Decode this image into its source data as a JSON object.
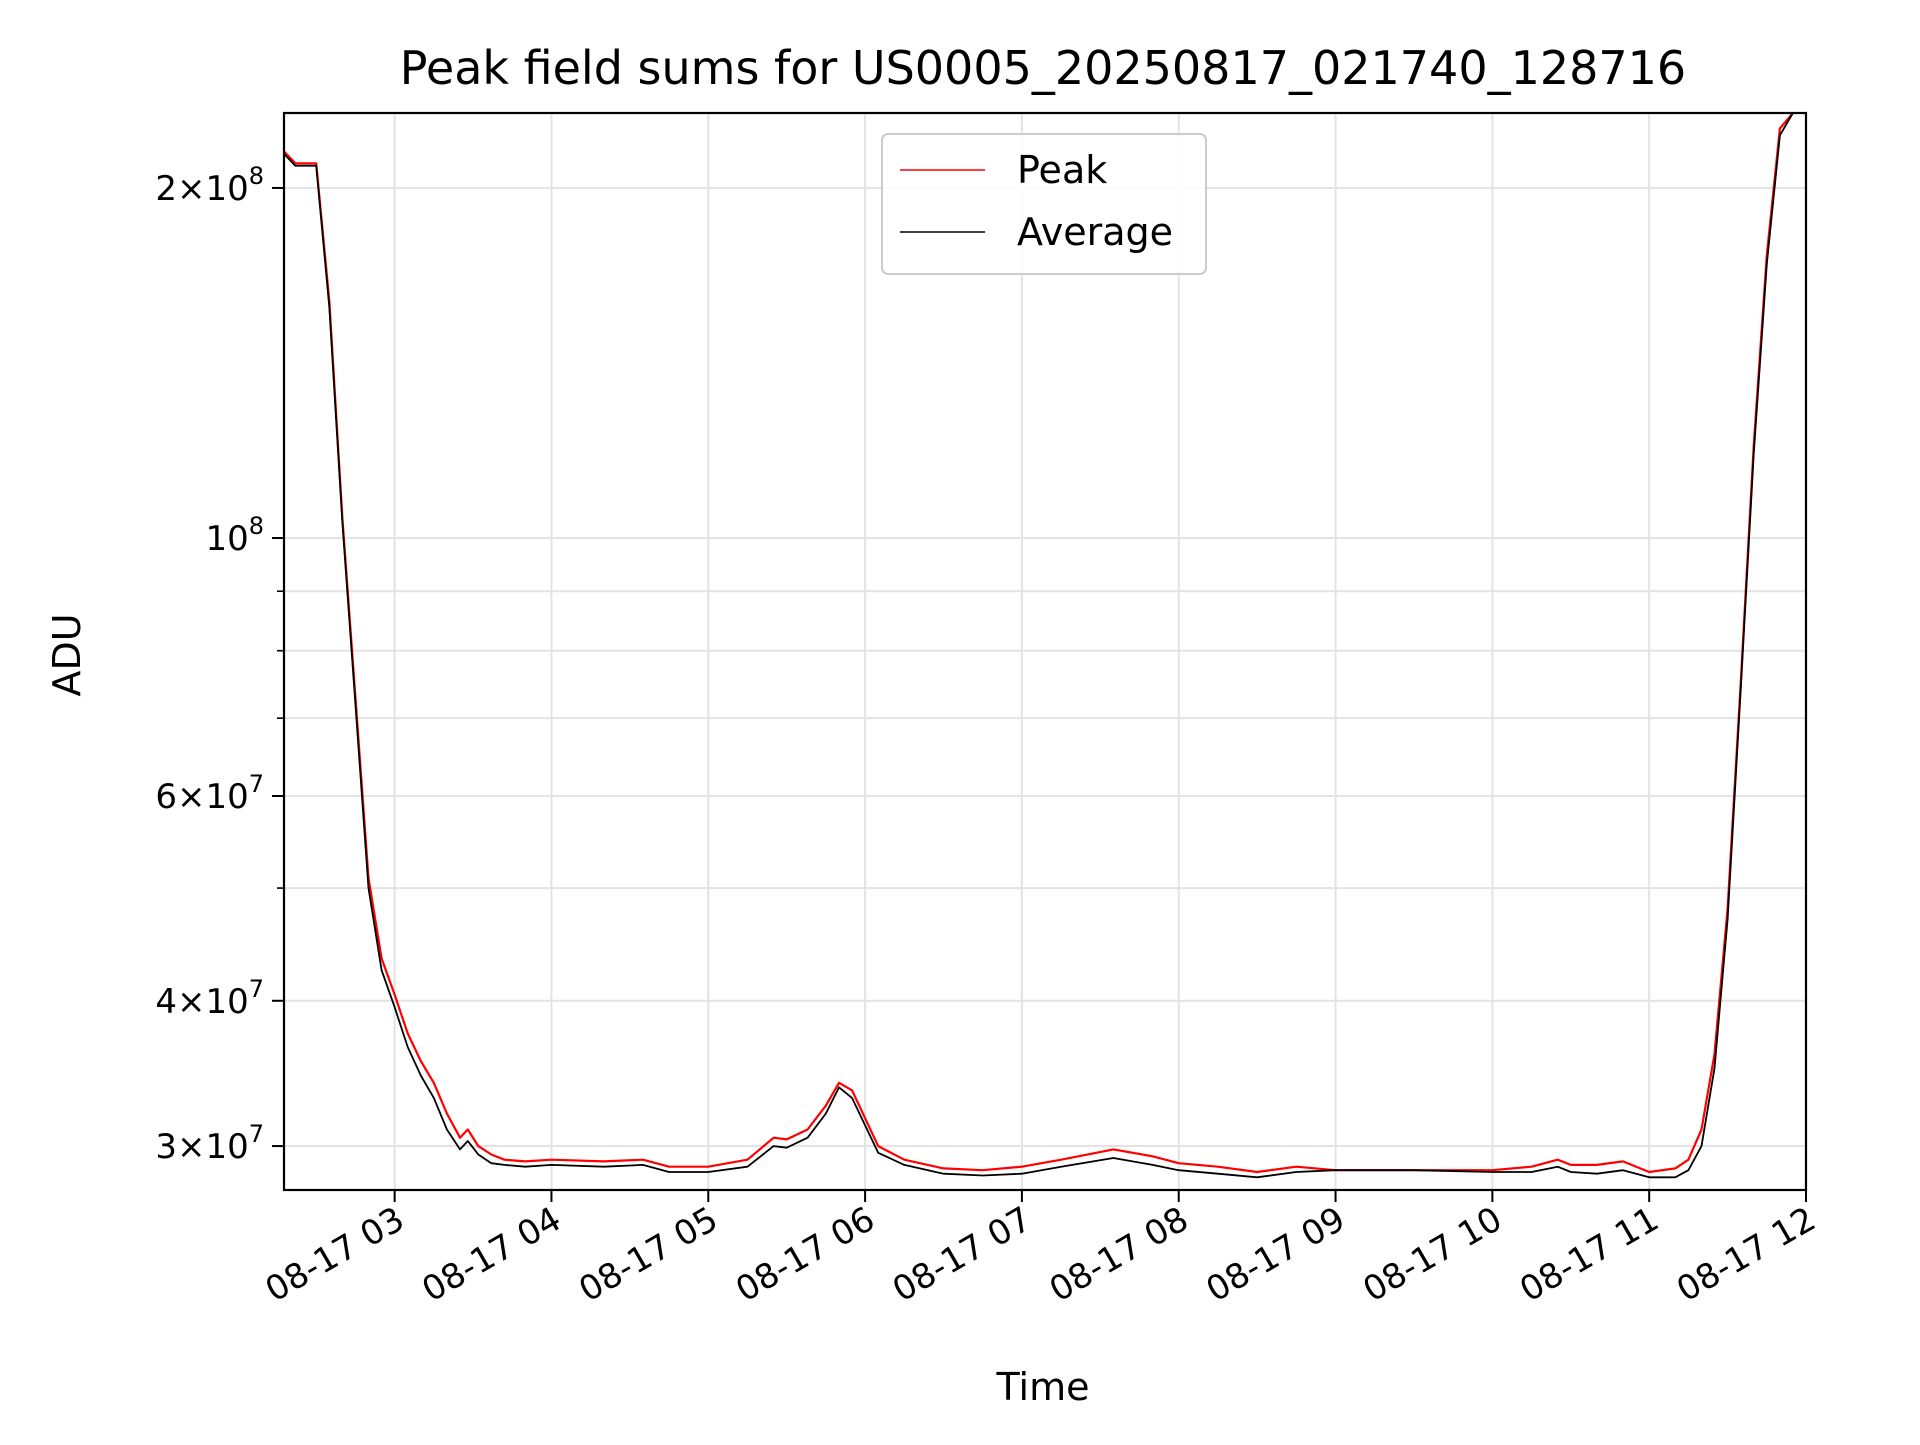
{
  "chart_data": {
    "type": "line",
    "title": "Peak field sums for US0005_20250817_021740_128716",
    "xlabel": "Time",
    "ylabel": "ADU",
    "y_scale": "log",
    "xlim": [
      "2025-08-17T02:17:40",
      "2025-08-17T12:00:00"
    ],
    "ylim": [
      27500000,
      232000000
    ],
    "grid": true,
    "legend_position": "top-center",
    "x_ticks": [
      "08-17 03",
      "08-17 04",
      "08-17 05",
      "08-17 06",
      "08-17 07",
      "08-17 08",
      "08-17 09",
      "08-17 10",
      "08-17 11",
      "08-17 12"
    ],
    "x_tick_times": [
      "2025-08-17T03:00",
      "2025-08-17T04:00",
      "2025-08-17T05:00",
      "2025-08-17T06:00",
      "2025-08-17T07:00",
      "2025-08-17T08:00",
      "2025-08-17T09:00",
      "2025-08-17T10:00",
      "2025-08-17T11:00",
      "2025-08-17T12:00"
    ],
    "y_ticks": [
      {
        "value": 200000000,
        "mantissa": "2",
        "exponent": "8"
      },
      {
        "value": 100000000,
        "mantissa": "",
        "exponent": "8"
      },
      {
        "value": 60000000,
        "mantissa": "6",
        "exponent": "7"
      },
      {
        "value": 40000000,
        "mantissa": "4",
        "exponent": "7"
      },
      {
        "value": 30000000,
        "mantissa": "3",
        "exponent": "7"
      }
    ],
    "y_minor_ticks": [
      50000000,
      70000000,
      80000000,
      90000000
    ],
    "series": [
      {
        "name": "Peak",
        "color": "#ff0000",
        "x": [
          "2025-08-17T02:17:40",
          "2025-08-17T02:22",
          "2025-08-17T02:30",
          "2025-08-17T02:35",
          "2025-08-17T02:40",
          "2025-08-17T02:45",
          "2025-08-17T02:50",
          "2025-08-17T02:55",
          "2025-08-17T03:00",
          "2025-08-17T03:05",
          "2025-08-17T03:10",
          "2025-08-17T03:15",
          "2025-08-17T03:20",
          "2025-08-17T03:25",
          "2025-08-17T03:28",
          "2025-08-17T03:32",
          "2025-08-17T03:37",
          "2025-08-17T03:42",
          "2025-08-17T03:50",
          "2025-08-17T04:00",
          "2025-08-17T04:20",
          "2025-08-17T04:35",
          "2025-08-17T04:45",
          "2025-08-17T05:00",
          "2025-08-17T05:15",
          "2025-08-17T05:25",
          "2025-08-17T05:30",
          "2025-08-17T05:38",
          "2025-08-17T05:45",
          "2025-08-17T05:50",
          "2025-08-17T05:55",
          "2025-08-17T06:05",
          "2025-08-17T06:15",
          "2025-08-17T06:30",
          "2025-08-17T06:45",
          "2025-08-17T07:00",
          "2025-08-17T07:15",
          "2025-08-17T07:35",
          "2025-08-17T07:50",
          "2025-08-17T08:00",
          "2025-08-17T08:15",
          "2025-08-17T08:30",
          "2025-08-17T08:45",
          "2025-08-17T09:00",
          "2025-08-17T09:30",
          "2025-08-17T10:00",
          "2025-08-17T10:15",
          "2025-08-17T10:25",
          "2025-08-17T10:30",
          "2025-08-17T10:40",
          "2025-08-17T10:50",
          "2025-08-17T11:00",
          "2025-08-17T11:10",
          "2025-08-17T11:15",
          "2025-08-17T11:20",
          "2025-08-17T11:25",
          "2025-08-17T11:30",
          "2025-08-17T11:35",
          "2025-08-17T11:40",
          "2025-08-17T11:45",
          "2025-08-17T11:50",
          "2025-08-17T11:55"
        ],
        "y": [
          215000000,
          210000000,
          210000000,
          160000000,
          104000000,
          73000000,
          51000000,
          43500000,
          40500000,
          37500000,
          35500000,
          34000000,
          32000000,
          30500000,
          31000000,
          30000000,
          29500000,
          29200000,
          29100000,
          29200000,
          29100000,
          29200000,
          28800000,
          28800000,
          29200000,
          30500000,
          30400000,
          31000000,
          32500000,
          34000000,
          33500000,
          30000000,
          29200000,
          28700000,
          28600000,
          28800000,
          29200000,
          29800000,
          29400000,
          29000000,
          28800000,
          28500000,
          28800000,
          28600000,
          28600000,
          28600000,
          28800000,
          29200000,
          28900000,
          28900000,
          29100000,
          28500000,
          28700000,
          29200000,
          31000000,
          36000000,
          48000000,
          75000000,
          120000000,
          175000000,
          225000000,
          232000000
        ]
      },
      {
        "name": "Average",
        "color": "#000000",
        "x": [
          "2025-08-17T02:17:40",
          "2025-08-17T02:22",
          "2025-08-17T02:30",
          "2025-08-17T02:35",
          "2025-08-17T02:40",
          "2025-08-17T02:45",
          "2025-08-17T02:50",
          "2025-08-17T02:55",
          "2025-08-17T03:00",
          "2025-08-17T03:05",
          "2025-08-17T03:10",
          "2025-08-17T03:15",
          "2025-08-17T03:20",
          "2025-08-17T03:25",
          "2025-08-17T03:28",
          "2025-08-17T03:32",
          "2025-08-17T03:37",
          "2025-08-17T03:42",
          "2025-08-17T03:50",
          "2025-08-17T04:00",
          "2025-08-17T04:20",
          "2025-08-17T04:35",
          "2025-08-17T04:45",
          "2025-08-17T05:00",
          "2025-08-17T05:15",
          "2025-08-17T05:25",
          "2025-08-17T05:30",
          "2025-08-17T05:38",
          "2025-08-17T05:45",
          "2025-08-17T05:50",
          "2025-08-17T05:55",
          "2025-08-17T06:05",
          "2025-08-17T06:15",
          "2025-08-17T06:30",
          "2025-08-17T06:45",
          "2025-08-17T07:00",
          "2025-08-17T07:15",
          "2025-08-17T07:35",
          "2025-08-17T07:50",
          "2025-08-17T08:00",
          "2025-08-17T08:15",
          "2025-08-17T08:30",
          "2025-08-17T08:45",
          "2025-08-17T09:00",
          "2025-08-17T09:30",
          "2025-08-17T10:00",
          "2025-08-17T10:15",
          "2025-08-17T10:25",
          "2025-08-17T10:30",
          "2025-08-17T10:40",
          "2025-08-17T10:50",
          "2025-08-17T11:00",
          "2025-08-17T11:10",
          "2025-08-17T11:15",
          "2025-08-17T11:20",
          "2025-08-17T11:25",
          "2025-08-17T11:30",
          "2025-08-17T11:35",
          "2025-08-17T11:40",
          "2025-08-17T11:45",
          "2025-08-17T11:50",
          "2025-08-17T11:55"
        ],
        "y": [
          214000000,
          209000000,
          209000000,
          158000000,
          103000000,
          72000000,
          50000000,
          42500000,
          39500000,
          36500000,
          34500000,
          33000000,
          31000000,
          29800000,
          30300000,
          29500000,
          29000000,
          28900000,
          28800000,
          28900000,
          28800000,
          28900000,
          28500000,
          28500000,
          28800000,
          30000000,
          29900000,
          30500000,
          32000000,
          33700000,
          33000000,
          29600000,
          28900000,
          28400000,
          28300000,
          28400000,
          28800000,
          29300000,
          28900000,
          28600000,
          28400000,
          28200000,
          28500000,
          28600000,
          28600000,
          28500000,
          28500000,
          28800000,
          28500000,
          28400000,
          28600000,
          28200000,
          28200000,
          28600000,
          30000000,
          35000000,
          47000000,
          74000000,
          118000000,
          172000000,
          222000000,
          232000000
        ]
      }
    ]
  }
}
